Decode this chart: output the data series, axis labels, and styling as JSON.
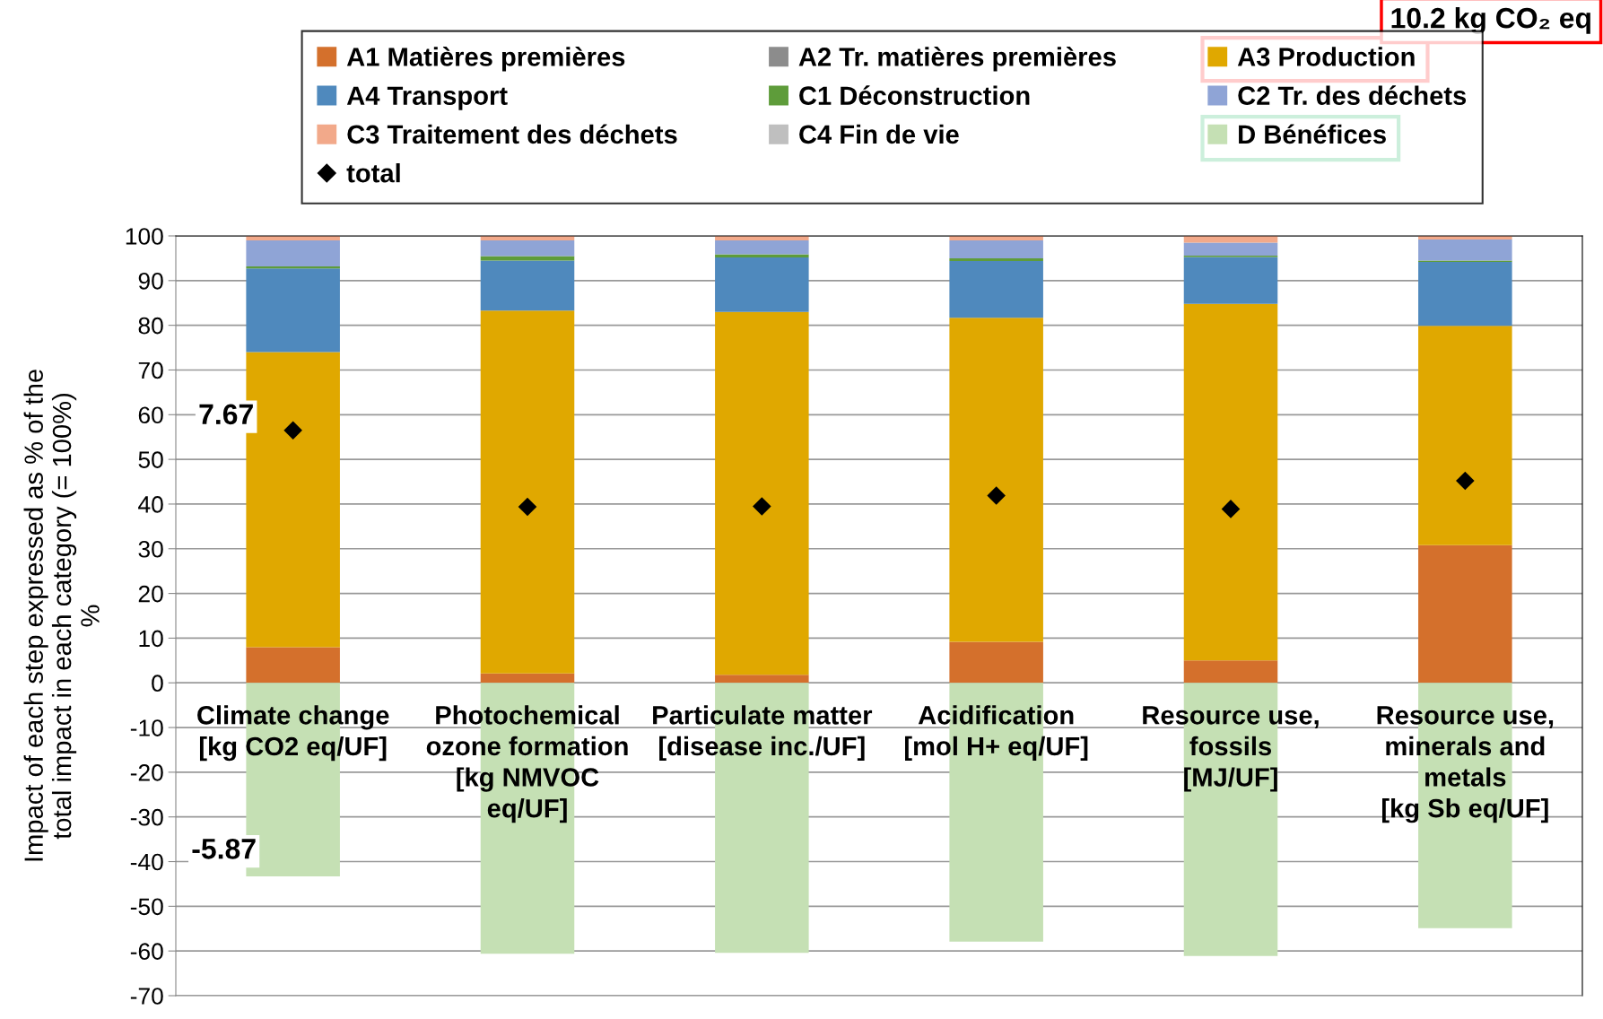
{
  "chart_data": {
    "type": "bar",
    "stacked": true,
    "ylabel": "Impact of each step expressed as % of the\ntotal impact in each category (= 100%)\n%",
    "categories": [
      "Climate change\n[kg CO2 eq/UF]",
      "Photochemical\nozone formation\n[kg NMVOC\neq/UF]",
      "Particulate matter\n[disease inc./UF]",
      "Acidification\n[mol H+ eq/UF]",
      "Resource use,\nfossils\n[MJ/UF]",
      "Resource use,\nminerals and\nmetals\n[kg Sb eq/UF]"
    ],
    "series": [
      {
        "name": "A1 Matières premières",
        "color": "#d4702c",
        "values": [
          8.0,
          2.1,
          1.8,
          9.2,
          5.0,
          30.8
        ]
      },
      {
        "name": "A2 Tr. matières premières",
        "color": "#8c8c8c",
        "values": [
          0,
          0,
          0,
          0,
          0,
          0
        ]
      },
      {
        "name": "A3 Production",
        "color": "#e0a800",
        "values": [
          66.0,
          81.2,
          81.2,
          72.5,
          79.8,
          49.1
        ]
      },
      {
        "name": "A4 Transport",
        "color": "#4f89bd",
        "values": [
          18.7,
          11.2,
          12.2,
          12.7,
          10.5,
          14.3
        ]
      },
      {
        "name": "C1 Déconstruction",
        "color": "#5e9c3a",
        "values": [
          0.5,
          1.0,
          0.7,
          0.6,
          0.3,
          0.3
        ]
      },
      {
        "name": "C2 Tr. des déchets",
        "color": "#8fa4d6",
        "values": [
          5.8,
          3.5,
          3.1,
          4.0,
          2.9,
          4.7
        ]
      },
      {
        "name": "C3 Traitement des déchets",
        "color": "#f2a98a",
        "values": [
          1.0,
          1.0,
          1.0,
          1.0,
          1.5,
          0.8
        ]
      },
      {
        "name": "C4 Fin de vie",
        "color": "#bfbfbf",
        "values": [
          0,
          0,
          0,
          0,
          0,
          0
        ]
      },
      {
        "name": "D Bénéfices",
        "color": "#c5e0b4",
        "values": [
          -43.3,
          -60.6,
          -60.4,
          -57.9,
          -61.1,
          -54.9
        ]
      },
      {
        "name": "total",
        "type": "scatter",
        "color": "#000000",
        "marker": "diamond",
        "x": [
          "Climate change\n[kg CO2 eq/UF]",
          "Photochemical\nozone formation\n[kg NMVOC\neq/UF]",
          "Particulate matter\n[disease inc./UF]",
          "Acidification\n[mol H+ eq/UF]",
          "Resource use,\nfossils\n[MJ/UF]",
          "Resource use,\nminerals and\nmetals\n[kg Sb eq/UF]"
        ],
        "values": [
          56.5,
          39.4,
          39.5,
          41.9,
          38.9,
          45.2
        ]
      }
    ],
    "ylim": [
      -70,
      100
    ],
    "yticks": [
      -70,
      -60,
      -50,
      -40,
      -30,
      -20,
      -10,
      0,
      10,
      20,
      30,
      40,
      50,
      60,
      70,
      80,
      90,
      100
    ],
    "grid": "y",
    "legend": "top",
    "annotations": [
      "7.67",
      "-5.87",
      "10.2 kg CO₂ eq"
    ]
  }
}
